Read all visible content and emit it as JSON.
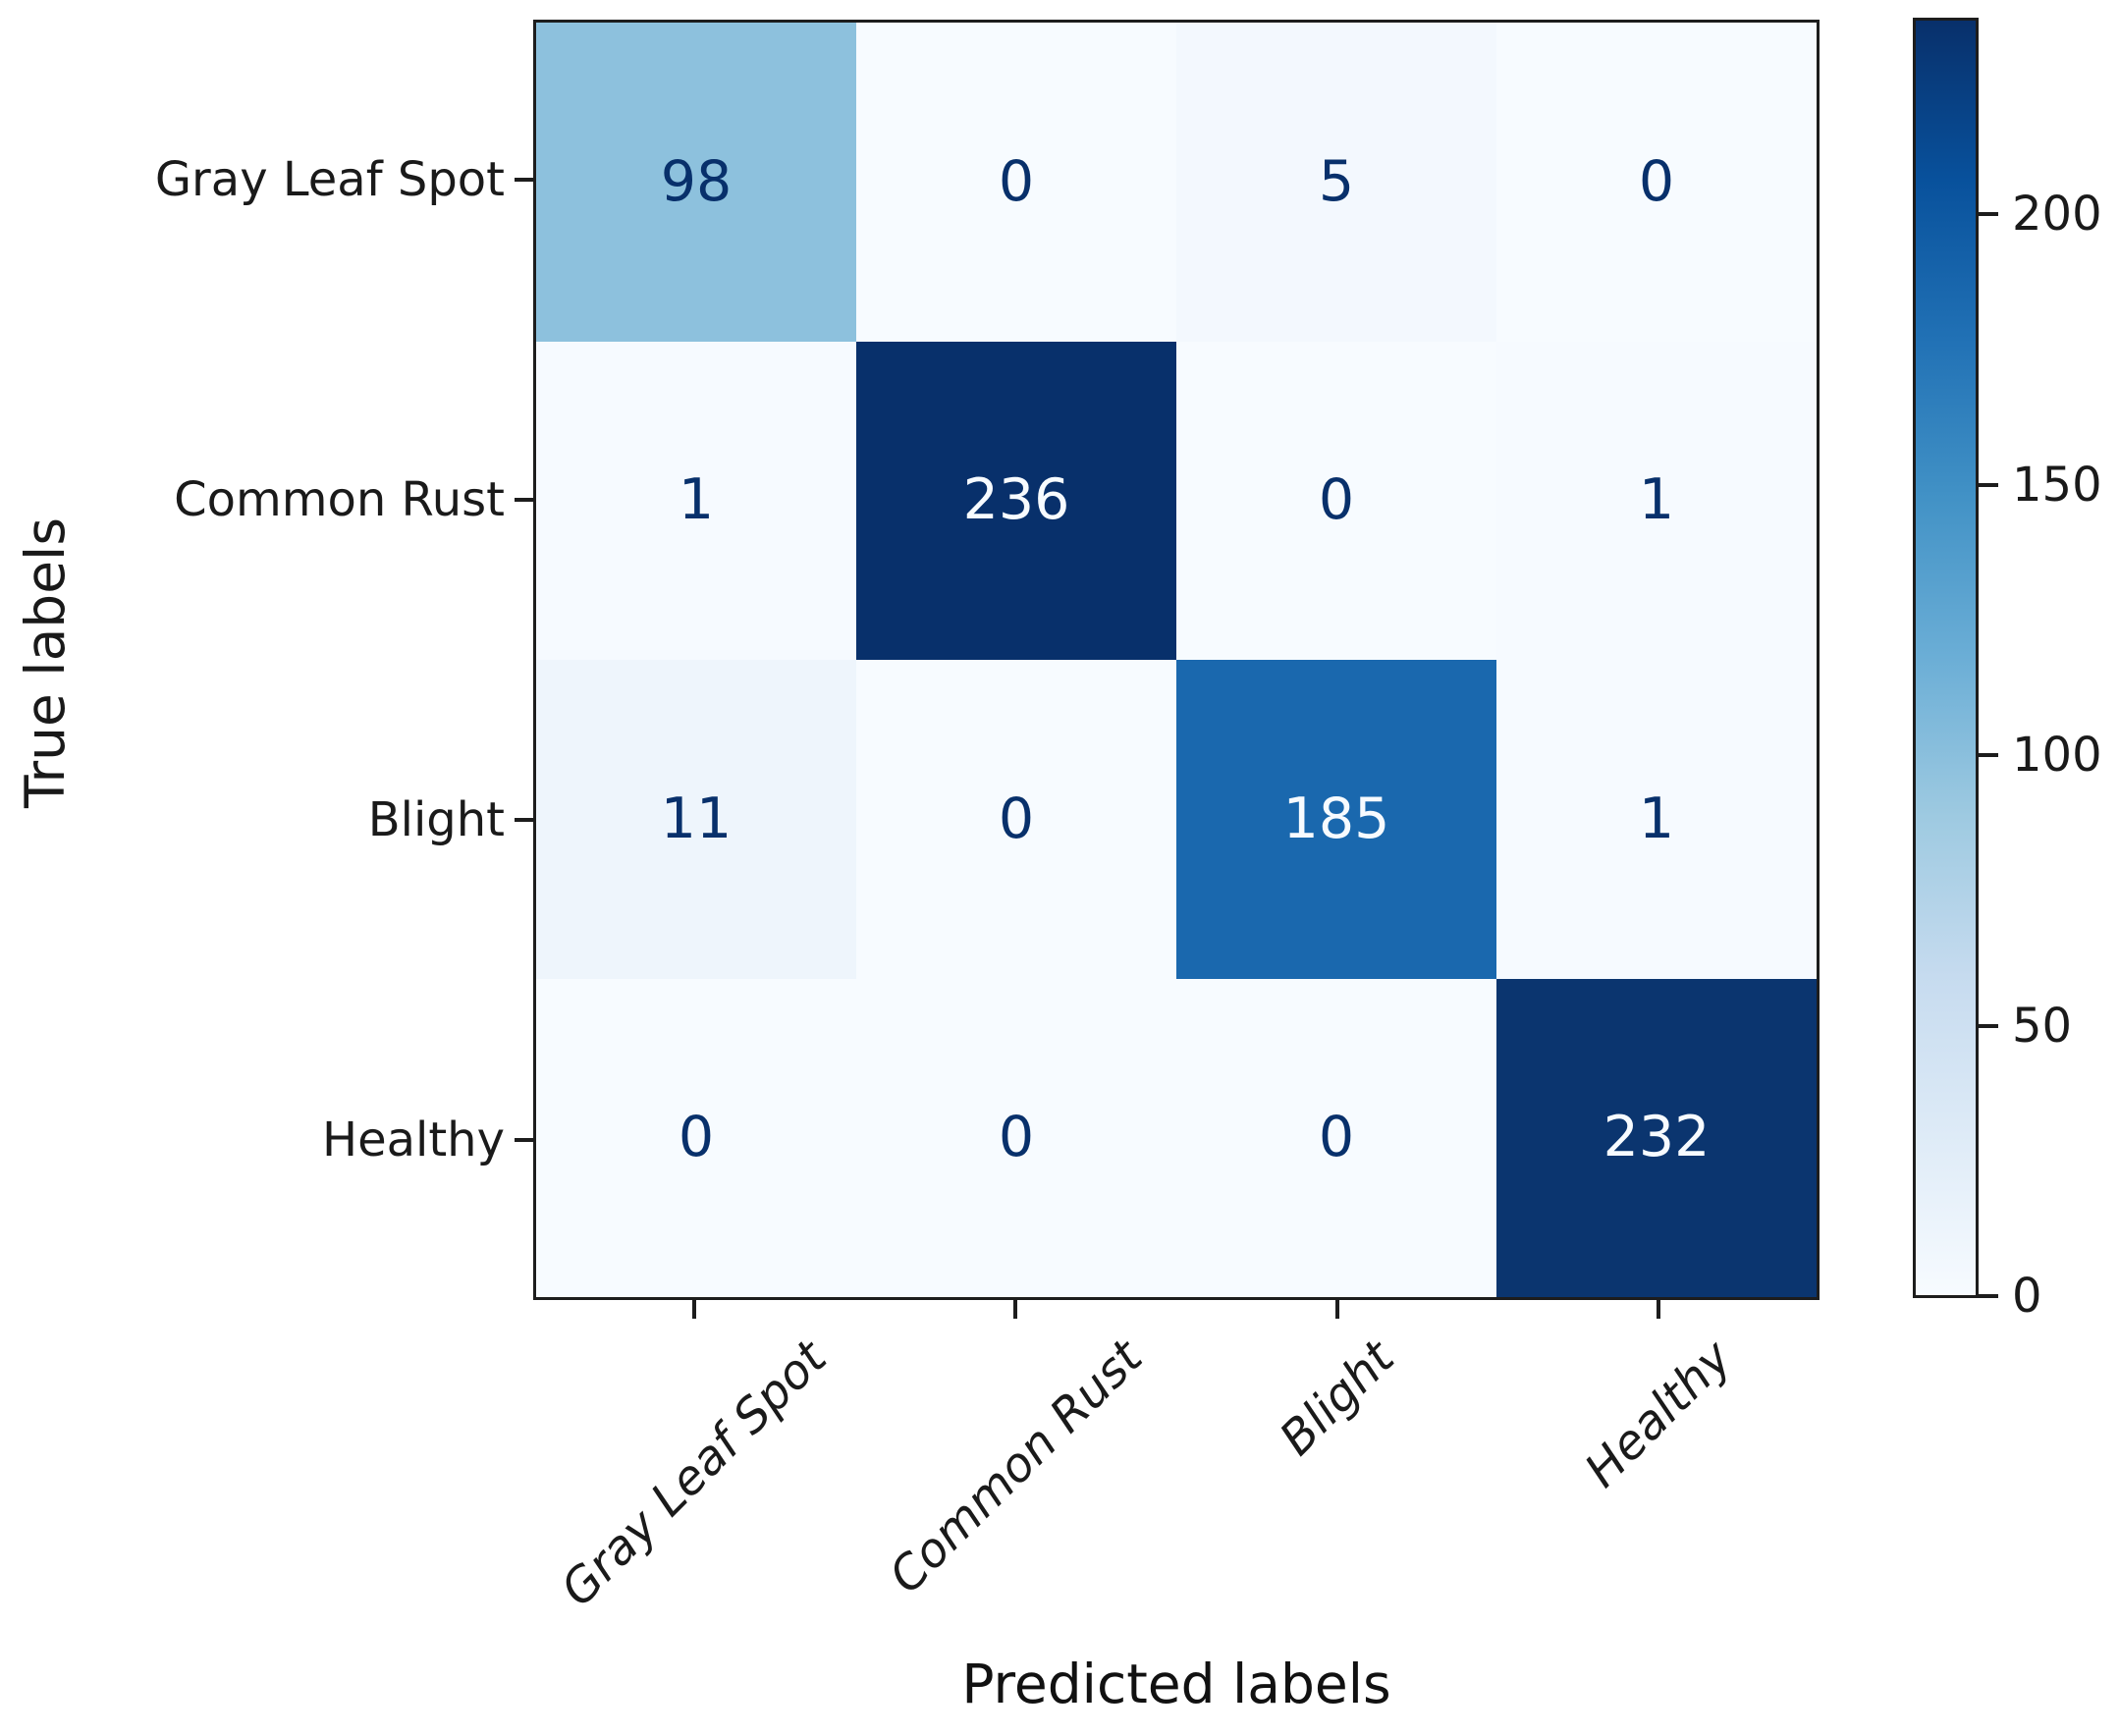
{
  "chart_data": {
    "type": "heatmap",
    "title": "",
    "xlabel": "Predicted labels",
    "ylabel": "True labels",
    "x_categories": [
      "Gray Leaf Spot",
      "Common Rust",
      "Blight",
      "Healthy"
    ],
    "y_categories": [
      "Gray Leaf Spot",
      "Common Rust",
      "Blight",
      "Healthy"
    ],
    "matrix": [
      [
        98,
        0,
        5,
        0
      ],
      [
        1,
        236,
        0,
        1
      ],
      [
        11,
        0,
        185,
        1
      ],
      [
        0,
        0,
        0,
        232
      ]
    ],
    "colormap": "Blues",
    "vmin": 0,
    "vmax": 236,
    "colorbar_ticks": [
      0,
      50,
      100,
      150,
      200
    ],
    "legend_position": "right-colorbar",
    "grid": false,
    "cell_colors": [
      [
        "#8dc1dd",
        "#f7fbff",
        "#f3f8fe",
        "#f7fbff"
      ],
      [
        "#f6faff",
        "#08306b",
        "#f7fbff",
        "#f6faff"
      ],
      [
        "#eef5fc",
        "#f7fbff",
        "#1a68ae",
        "#f6faff"
      ],
      [
        "#f7fbff",
        "#f7fbff",
        "#f7fbff",
        "#0b356f"
      ]
    ],
    "cell_text_colors": [
      [
        "#08306b",
        "#08306b",
        "#08306b",
        "#08306b"
      ],
      [
        "#08306b",
        "#f7fbff",
        "#08306b",
        "#08306b"
      ],
      [
        "#08306b",
        "#08306b",
        "#f7fbff",
        "#08306b"
      ],
      [
        "#08306b",
        "#08306b",
        "#08306b",
        "#f7fbff"
      ]
    ],
    "axis_color": "#1d1d1d",
    "label_color": "#1a1a1a"
  }
}
